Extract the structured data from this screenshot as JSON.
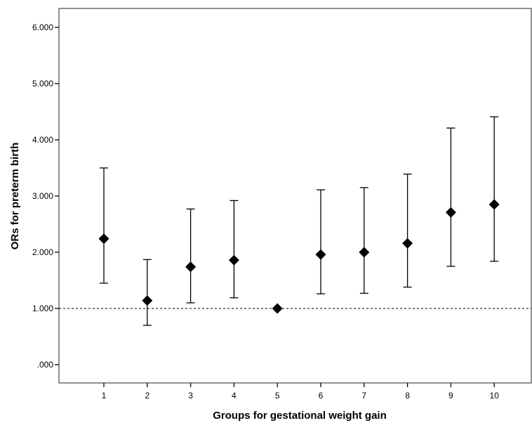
{
  "chart_data": {
    "type": "scatter",
    "xlabel": "Groups for gestational weight gain",
    "ylabel": "ORs for preterm birth",
    "categories": [
      "1",
      "2",
      "3",
      "4",
      "5",
      "6",
      "7",
      "8",
      "9",
      "10"
    ],
    "series": [
      {
        "values": [
          2.24,
          1.14,
          1.74,
          1.86,
          1.0,
          1.96,
          2.0,
          2.16,
          2.71,
          2.85
        ],
        "ci_lower": [
          1.45,
          0.7,
          1.1,
          1.19,
          null,
          1.26,
          1.27,
          1.38,
          1.75,
          1.84
        ],
        "ci_upper": [
          3.5,
          1.87,
          2.77,
          2.92,
          null,
          3.11,
          3.15,
          3.39,
          4.21,
          4.41
        ]
      }
    ],
    "ylim": [
      -0.3,
      6.35
    ],
    "yticks": [
      ".000",
      "1.000",
      "2.000",
      "3.000",
      "4.000",
      "5.000",
      "6.000"
    ],
    "ytick_values": [
      0,
      1,
      2,
      3,
      4,
      5,
      6
    ],
    "reference_line": {
      "y": 1.0,
      "style": "dashed"
    },
    "grid": false,
    "marker": "diamond",
    "colors": {
      "marker": "#000000",
      "line": "#000000",
      "background": "#ffffff"
    }
  }
}
